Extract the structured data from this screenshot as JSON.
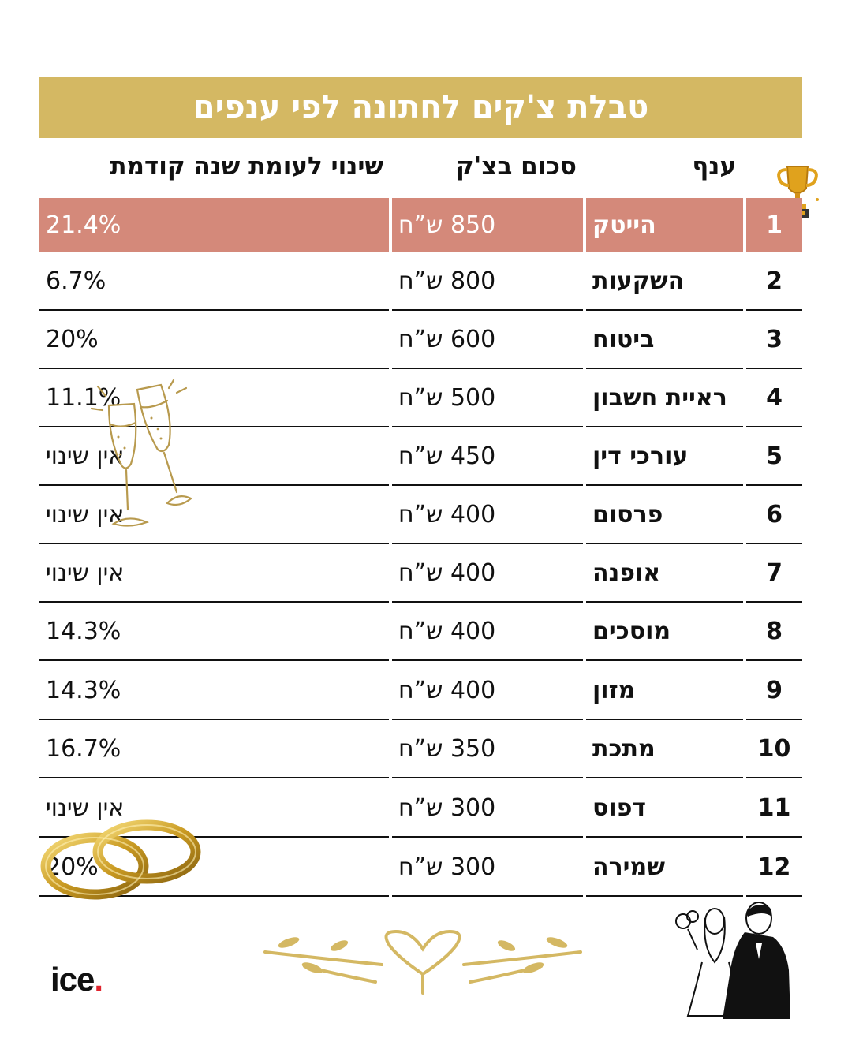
{
  "title": "טבלת צ'קים לחתונה לפי ענפים",
  "headers": {
    "sector": "ענף",
    "amount": "סכום בצ'ק",
    "change": "שינוי לעומת שנה קודמת"
  },
  "rows": [
    {
      "rank": "1",
      "sector": "הייטק",
      "amount": "850 ש”ח",
      "change": "21.4%"
    },
    {
      "rank": "2",
      "sector": "השקעות",
      "amount": "800 ש”ח",
      "change": "6.7%"
    },
    {
      "rank": "3",
      "sector": "ביטוח",
      "amount": "600 ש”ח",
      "change": "20%"
    },
    {
      "rank": "4",
      "sector": "ראיית חשבון",
      "amount": "500 ש”ח",
      "change": "11.1%"
    },
    {
      "rank": "5",
      "sector": "עורכי דין",
      "amount": "450 ש”ח",
      "change": "אין שינוי"
    },
    {
      "rank": "6",
      "sector": "פרסום",
      "amount": "400 ש”ח",
      "change": "אין שינוי"
    },
    {
      "rank": "7",
      "sector": "אופנה",
      "amount": "400 ש”ח",
      "change": "אין שינוי"
    },
    {
      "rank": "8",
      "sector": "מוסכים",
      "amount": "400 ש”ח",
      "change": "14.3%"
    },
    {
      "rank": "9",
      "sector": "מזון",
      "amount": "400 ש”ח",
      "change": "14.3%"
    },
    {
      "rank": "10",
      "sector": "מתכת",
      "amount": "350 ש”ח",
      "change": "16.7%"
    },
    {
      "rank": "11",
      "sector": "דפוס",
      "amount": "300 ש”ח",
      "change": "אין שינוי"
    },
    {
      "rank": "12",
      "sector": "שמירה",
      "amount": "300 ש”ח",
      "change": "20%"
    }
  ],
  "logo": {
    "text": "ice",
    "dot": "."
  },
  "colors": {
    "gold": "#d4b863",
    "highlight": "#d4897a",
    "text": "#111111",
    "logo_dot": "#e0232d"
  },
  "icons": [
    "trophy-icon",
    "champagne-glasses-icon",
    "wedding-rings-icon",
    "heart-ornament-icon",
    "couple-illustration-icon"
  ]
}
